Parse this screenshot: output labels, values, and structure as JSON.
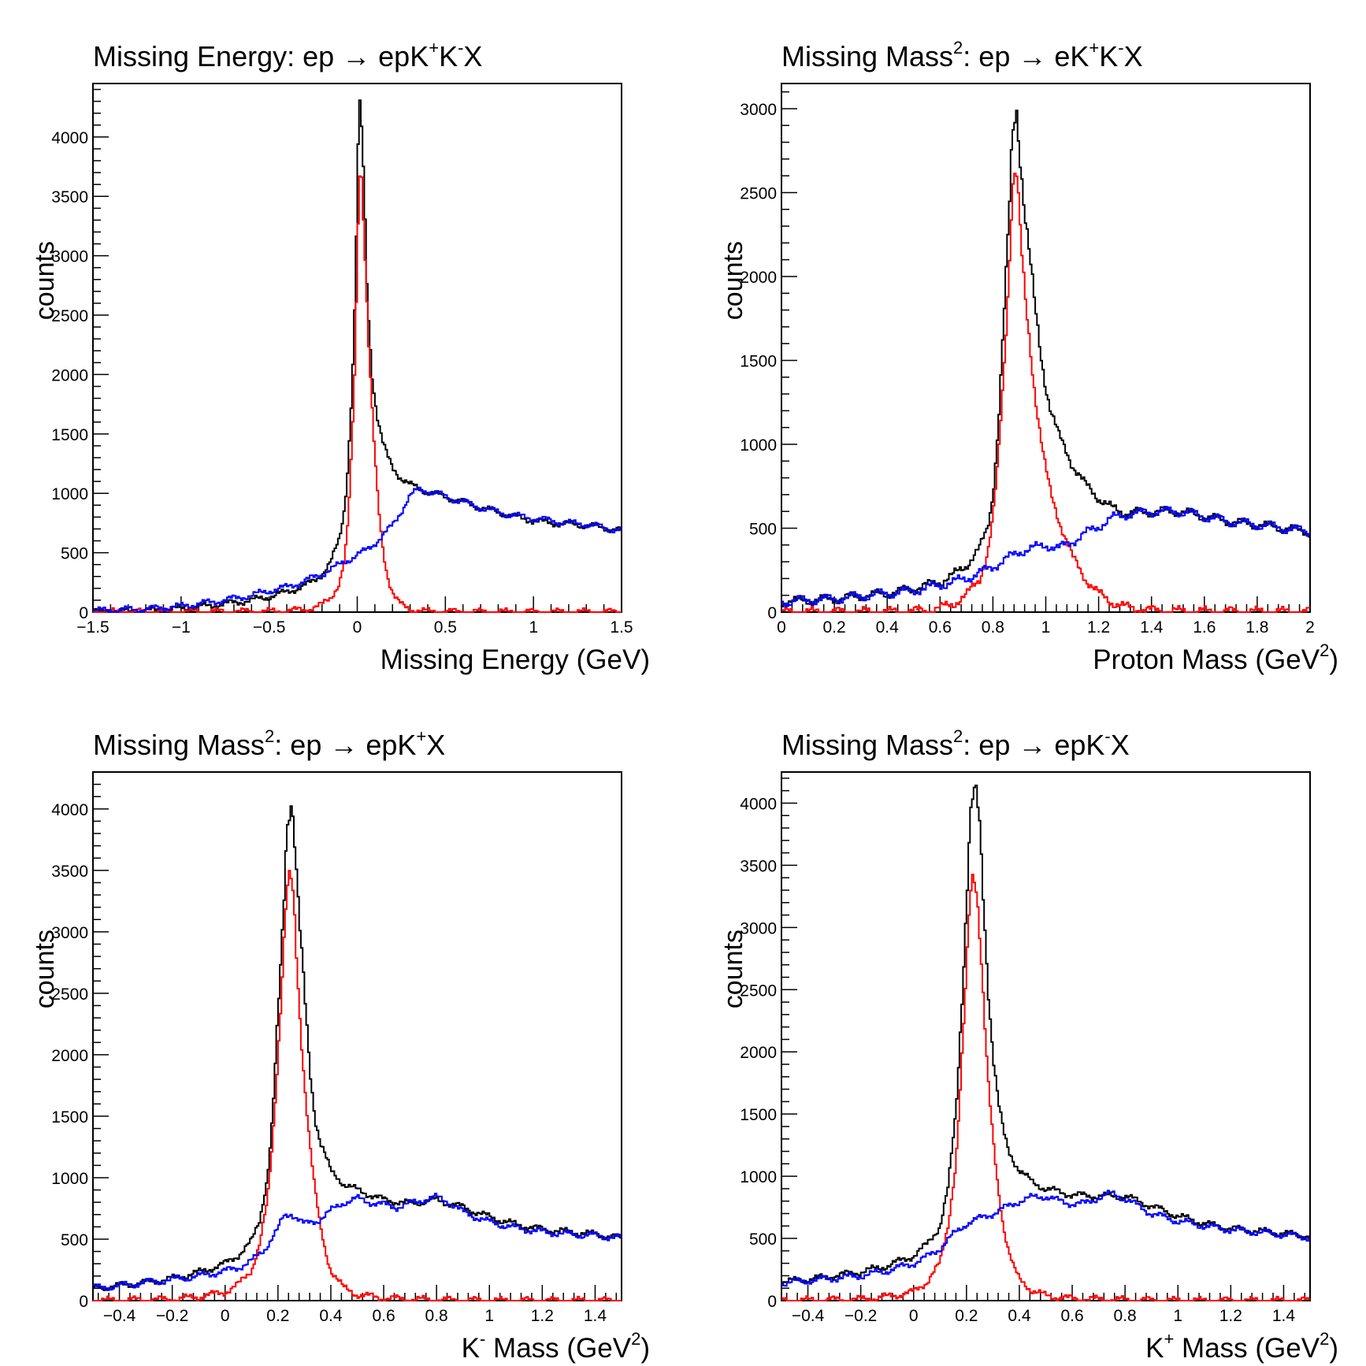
{
  "chart_data": [
    {
      "type": "histogram",
      "title": {
        "text": "Missing Energy: ep → epK",
        "sup1": "+",
        "mid": "K",
        "sup2": "-",
        "end": "X"
      },
      "xlabel": {
        "main": "Missing Energy (GeV)",
        "sup": "",
        "end": ""
      },
      "ylabel": "counts",
      "xlim": [
        -1.5,
        1.5
      ],
      "ylim": [
        0,
        4450
      ],
      "xticks": [
        -1.5,
        -1,
        -0.5,
        0,
        0.5,
        1,
        1.5
      ],
      "xtick_labels": [
        "−1.5",
        "−1",
        "−0.5",
        "0",
        "0.5",
        "1",
        "1.5"
      ],
      "yticks": [
        0,
        500,
        1000,
        1500,
        2000,
        2500,
        3000,
        3500,
        4000
      ],
      "ytick_labels": [
        "0",
        "500",
        "1000",
        "1500",
        "2000",
        "2500",
        "3000",
        "3500",
        "4000"
      ],
      "grid": false,
      "series": [
        {
          "color": "#000000",
          "x": [
            -1.5,
            -1.2,
            -1.0,
            -0.8,
            -0.6,
            -0.5,
            -0.4,
            -0.3,
            -0.25,
            -0.2,
            -0.15,
            -0.1,
            -0.07,
            -0.05,
            -0.03,
            -0.01,
            0.0,
            0.01,
            0.02,
            0.03,
            0.04,
            0.05,
            0.06,
            0.08,
            0.1,
            0.12,
            0.14,
            0.16,
            0.18,
            0.2,
            0.25,
            0.3,
            0.35,
            0.4,
            0.5,
            0.6,
            0.7,
            0.8,
            0.9,
            1.0,
            1.1,
            1.2,
            1.3,
            1.4,
            1.5
          ],
          "y": [
            0,
            10,
            30,
            60,
            100,
            130,
            170,
            220,
            260,
            320,
            420,
            620,
            900,
            1300,
            1900,
            2700,
            3600,
            4150,
            4200,
            3900,
            3500,
            3000,
            2600,
            2100,
            1800,
            1600,
            1450,
            1350,
            1280,
            1220,
            1130,
            1070,
            1040,
            1010,
            970,
            930,
            880,
            840,
            800,
            770,
            750,
            740,
            730,
            710,
            690
          ]
        },
        {
          "color": "#ff0000",
          "x": [
            -1.5,
            -0.5,
            -0.4,
            -0.3,
            -0.2,
            -0.15,
            -0.1,
            -0.07,
            -0.05,
            -0.03,
            -0.01,
            0.0,
            0.01,
            0.02,
            0.03,
            0.04,
            0.05,
            0.06,
            0.08,
            0.1,
            0.12,
            0.14,
            0.16,
            0.18,
            0.2,
            0.22,
            0.25,
            0.3,
            0.35,
            0.4,
            0.5,
            0.6,
            0.8,
            1.0,
            1.5
          ],
          "y": [
            0,
            5,
            10,
            20,
            60,
            120,
            250,
            450,
            800,
            1400,
            2200,
            3000,
            3700,
            3800,
            3600,
            3200,
            2800,
            2400,
            1800,
            1300,
            900,
            600,
            400,
            260,
            170,
            110,
            60,
            25,
            12,
            6,
            3,
            2,
            1,
            0,
            0
          ]
        },
        {
          "color": "#0000ff",
          "x": [
            -1.5,
            -1.2,
            -1.0,
            -0.8,
            -0.6,
            -0.5,
            -0.4,
            -0.3,
            -0.2,
            -0.1,
            0.0,
            0.05,
            0.1,
            0.15,
            0.2,
            0.25,
            0.3,
            0.35,
            0.4,
            0.45,
            0.5,
            0.6,
            0.7,
            0.8,
            0.9,
            1.0,
            1.1,
            1.2,
            1.3,
            1.4,
            1.5
          ],
          "y": [
            10,
            25,
            50,
            90,
            140,
            180,
            210,
            260,
            320,
            400,
            480,
            520,
            580,
            650,
            730,
            850,
            980,
            1030,
            1020,
            1000,
            970,
            930,
            880,
            840,
            810,
            790,
            770,
            750,
            740,
            710,
            690
          ]
        }
      ]
    },
    {
      "type": "histogram",
      "title": {
        "text": "Missing Mass",
        "sup1": "2",
        "mid": ": ep → eK",
        "sup2": "+",
        "end": "K",
        "sup3": "-",
        "end2": "X"
      },
      "xlabel": {
        "main": "Proton Mass (GeV",
        "sup": "2",
        "end": ")"
      },
      "ylabel": "counts",
      "xlim": [
        0,
        2
      ],
      "ylim": [
        0,
        3150
      ],
      "xticks": [
        0,
        0.2,
        0.4,
        0.6,
        0.8,
        1,
        1.2,
        1.4,
        1.6,
        1.8,
        2
      ],
      "xtick_labels": [
        "0",
        "0.2",
        "0.4",
        "0.6",
        "0.8",
        "1",
        "1.2",
        "1.4",
        "1.6",
        "1.8",
        "2"
      ],
      "yticks": [
        0,
        500,
        1000,
        1500,
        2000,
        2500,
        3000
      ],
      "ytick_labels": [
        "0",
        "500",
        "1000",
        "1500",
        "2000",
        "2500",
        "3000"
      ],
      "grid": false,
      "series": [
        {
          "color": "#000000",
          "x": [
            0,
            0.2,
            0.4,
            0.5,
            0.6,
            0.65,
            0.7,
            0.75,
            0.78,
            0.8,
            0.82,
            0.84,
            0.86,
            0.87,
            0.88,
            0.89,
            0.9,
            0.91,
            0.92,
            0.94,
            0.96,
            0.98,
            1.0,
            1.02,
            1.05,
            1.08,
            1.1,
            1.15,
            1.2,
            1.25,
            1.3,
            1.4,
            1.5,
            1.6,
            1.7,
            1.8,
            1.9,
            2.0
          ],
          "y": [
            60,
            80,
            110,
            140,
            180,
            220,
            280,
            380,
            500,
            700,
            1100,
            1700,
            2300,
            2700,
            2950,
            3000,
            2800,
            2600,
            2400,
            2100,
            1800,
            1550,
            1350,
            1200,
            1050,
            950,
            880,
            760,
            680,
            620,
            590,
            600,
            600,
            570,
            540,
            520,
            500,
            480
          ]
        },
        {
          "color": "#ff0000",
          "x": [
            0,
            0.4,
            0.5,
            0.55,
            0.6,
            0.65,
            0.7,
            0.75,
            0.78,
            0.8,
            0.82,
            0.84,
            0.86,
            0.87,
            0.88,
            0.89,
            0.9,
            0.91,
            0.92,
            0.94,
            0.96,
            0.98,
            1.0,
            1.02,
            1.05,
            1.08,
            1.1,
            1.15,
            1.2,
            1.25,
            1.3,
            1.4,
            1.5,
            2.0
          ],
          "y": [
            0,
            0,
            5,
            10,
            25,
            50,
            100,
            200,
            350,
            550,
            900,
            1400,
            2000,
            2400,
            2620,
            2600,
            2350,
            2100,
            1900,
            1600,
            1300,
            1050,
            850,
            700,
            550,
            420,
            330,
            200,
            110,
            60,
            30,
            10,
            5,
            0
          ]
        },
        {
          "color": "#0000ff",
          "x": [
            0,
            0.1,
            0.2,
            0.3,
            0.4,
            0.5,
            0.6,
            0.7,
            0.8,
            0.9,
            1.0,
            1.05,
            1.1,
            1.15,
            1.2,
            1.25,
            1.3,
            1.35,
            1.4,
            1.5,
            1.6,
            1.7,
            1.8,
            1.9,
            2.0
          ],
          "y": [
            60,
            70,
            80,
            95,
            110,
            130,
            160,
            200,
            270,
            360,
            400,
            380,
            420,
            470,
            510,
            560,
            580,
            590,
            600,
            600,
            570,
            540,
            520,
            500,
            480
          ]
        }
      ]
    },
    {
      "type": "histogram",
      "title": {
        "text": "Missing Mass",
        "sup1": "2",
        "mid": ": ep → epK",
        "sup2": "+",
        "end": "X"
      },
      "xlabel": {
        "main": "K",
        "sup": "-",
        "mid": " Mass (GeV",
        "sup2": "2",
        "end": ")"
      },
      "ylabel": "counts",
      "xlim": [
        -0.5,
        1.5
      ],
      "ylim": [
        0,
        4300
      ],
      "xticks": [
        -0.4,
        -0.2,
        0,
        0.2,
        0.4,
        0.6,
        0.8,
        1,
        1.2,
        1.4
      ],
      "xtick_labels": [
        "−0.4",
        "−0.2",
        "0",
        "0.2",
        "0.4",
        "0.6",
        "0.8",
        "1",
        "1.2",
        "1.4"
      ],
      "yticks": [
        0,
        500,
        1000,
        1500,
        2000,
        2500,
        3000,
        3500,
        4000
      ],
      "ytick_labels": [
        "0",
        "500",
        "1000",
        "1500",
        "2000",
        "2500",
        "3000",
        "3500",
        "4000"
      ],
      "grid": false,
      "series": [
        {
          "color": "#000000",
          "x": [
            -0.5,
            -0.4,
            -0.3,
            -0.2,
            -0.1,
            0.0,
            0.05,
            0.1,
            0.13,
            0.16,
            0.18,
            0.2,
            0.22,
            0.23,
            0.24,
            0.25,
            0.26,
            0.27,
            0.28,
            0.3,
            0.32,
            0.34,
            0.36,
            0.4,
            0.45,
            0.5,
            0.6,
            0.7,
            0.8,
            0.9,
            1.0,
            1.1,
            1.2,
            1.3,
            1.4,
            1.5
          ],
          "y": [
            100,
            120,
            150,
            180,
            230,
            300,
            370,
            480,
            650,
            1000,
            1500,
            2300,
            3100,
            3700,
            4000,
            4100,
            3900,
            3500,
            3100,
            2500,
            1900,
            1500,
            1300,
            1050,
            950,
            900,
            820,
            790,
            820,
            760,
            680,
            620,
            580,
            560,
            540,
            510
          ]
        },
        {
          "color": "#ff0000",
          "x": [
            -0.5,
            -0.2,
            -0.1,
            0.0,
            0.05,
            0.1,
            0.13,
            0.16,
            0.18,
            0.2,
            0.22,
            0.23,
            0.24,
            0.25,
            0.26,
            0.27,
            0.28,
            0.3,
            0.32,
            0.34,
            0.36,
            0.38,
            0.4,
            0.45,
            0.5,
            0.6,
            0.7,
            0.8,
            1.0,
            1.5
          ],
          "y": [
            0,
            10,
            30,
            70,
            130,
            250,
            450,
            800,
            1300,
            2000,
            2800,
            3200,
            3400,
            3400,
            3200,
            2800,
            2400,
            1800,
            1300,
            900,
            600,
            400,
            250,
            100,
            50,
            20,
            10,
            5,
            0,
            0
          ]
        },
        {
          "color": "#0000ff",
          "x": [
            -0.5,
            -0.4,
            -0.3,
            -0.2,
            -0.1,
            0.0,
            0.05,
            0.1,
            0.15,
            0.2,
            0.22,
            0.25,
            0.28,
            0.3,
            0.35,
            0.4,
            0.45,
            0.5,
            0.55,
            0.6,
            0.65,
            0.7,
            0.75,
            0.8,
            0.85,
            0.9,
            1.0,
            1.1,
            1.2,
            1.3,
            1.4,
            1.5
          ],
          "y": [
            100,
            120,
            150,
            170,
            200,
            240,
            270,
            320,
            420,
            580,
            680,
            710,
            660,
            620,
            650,
            730,
            800,
            830,
            800,
            780,
            760,
            790,
            820,
            840,
            800,
            720,
            640,
            590,
            560,
            540,
            530,
            510
          ]
        }
      ]
    },
    {
      "type": "histogram",
      "title": {
        "text": "Missing Mass",
        "sup1": "2",
        "mid": ": ep → epK",
        "sup2": "-",
        "end": "X"
      },
      "xlabel": {
        "main": "K",
        "sup": "+",
        "mid": " Mass (GeV",
        "sup2": "2",
        "end": ")"
      },
      "ylabel": "counts",
      "xlim": [
        -0.5,
        1.5
      ],
      "ylim": [
        0,
        4250
      ],
      "xticks": [
        -0.4,
        -0.2,
        0,
        0.2,
        0.4,
        0.6,
        0.8,
        1,
        1.2,
        1.4
      ],
      "xtick_labels": [
        "−0.4",
        "−0.2",
        "0",
        "0.2",
        "0.4",
        "0.6",
        "0.8",
        "1",
        "1.2",
        "1.4"
      ],
      "yticks": [
        0,
        500,
        1000,
        1500,
        2000,
        2500,
        3000,
        3500,
        4000
      ],
      "ytick_labels": [
        "0",
        "500",
        "1000",
        "1500",
        "2000",
        "2500",
        "3000",
        "3500",
        "4000"
      ],
      "grid": false,
      "series": [
        {
          "color": "#000000",
          "x": [
            -0.5,
            -0.4,
            -0.3,
            -0.2,
            -0.1,
            0.0,
            0.05,
            0.1,
            0.13,
            0.16,
            0.18,
            0.2,
            0.21,
            0.22,
            0.23,
            0.24,
            0.25,
            0.26,
            0.27,
            0.28,
            0.3,
            0.32,
            0.34,
            0.36,
            0.4,
            0.45,
            0.5,
            0.6,
            0.7,
            0.8,
            0.9,
            1.0,
            1.1,
            1.2,
            1.3,
            1.4,
            1.5
          ],
          "y": [
            150,
            170,
            200,
            230,
            280,
            360,
            450,
            600,
            900,
            1500,
            2300,
            3200,
            3700,
            4000,
            4050,
            4000,
            3800,
            3400,
            3000,
            2600,
            2000,
            1600,
            1350,
            1200,
            1050,
            950,
            900,
            850,
            840,
            840,
            760,
            680,
            620,
            580,
            560,
            540,
            520
          ]
        },
        {
          "color": "#ff0000",
          "x": [
            -0.5,
            -0.2,
            -0.1,
            0.0,
            0.05,
            0.1,
            0.13,
            0.16,
            0.18,
            0.2,
            0.21,
            0.22,
            0.23,
            0.24,
            0.25,
            0.26,
            0.27,
            0.28,
            0.3,
            0.32,
            0.34,
            0.36,
            0.38,
            0.4,
            0.45,
            0.5,
            0.6,
            0.8,
            1.0,
            1.5
          ],
          "y": [
            0,
            10,
            30,
            70,
            150,
            300,
            600,
            1100,
            1800,
            2600,
            3100,
            3400,
            3450,
            3300,
            3000,
            2600,
            2200,
            1800,
            1300,
            900,
            600,
            400,
            260,
            170,
            80,
            40,
            15,
            5,
            0,
            0
          ]
        },
        {
          "color": "#0000ff",
          "x": [
            -0.5,
            -0.4,
            -0.3,
            -0.2,
            -0.1,
            0.0,
            0.05,
            0.1,
            0.15,
            0.2,
            0.25,
            0.3,
            0.35,
            0.4,
            0.45,
            0.5,
            0.55,
            0.6,
            0.65,
            0.7,
            0.75,
            0.8,
            0.85,
            0.9,
            1.0,
            1.1,
            1.2,
            1.3,
            1.4,
            1.5
          ],
          "y": [
            140,
            160,
            180,
            200,
            240,
            300,
            350,
            420,
            530,
            620,
            660,
            700,
            750,
            800,
            830,
            840,
            800,
            780,
            780,
            830,
            860,
            820,
            760,
            700,
            640,
            600,
            570,
            550,
            530,
            510
          ]
        }
      ]
    }
  ]
}
